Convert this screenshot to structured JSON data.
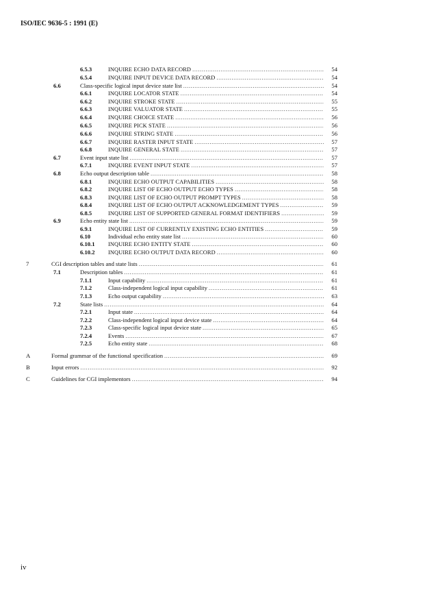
{
  "header": {
    "title": "ISO/IEC 9636-5 : 1991 (E)"
  },
  "toc": {
    "entries": [
      {
        "number": "6.5.3",
        "title": "INQUIRE ECHO DATA RECORD",
        "page": "54"
      },
      {
        "number": "6.5.4",
        "title": "INQUIRE INPUT DEVICE DATA RECORD",
        "page": "54"
      },
      {
        "number": "6.6",
        "title": "Class-specific logical input device state list",
        "page": "54"
      },
      {
        "number": "6.6.1",
        "title": "INQUIRE LOCATOR STATE",
        "page": "54"
      },
      {
        "number": "6.6.2",
        "title": "INQUIRE STROKE STATE",
        "page": "55"
      },
      {
        "number": "6.6.3",
        "title": "INQUIRE VALUATOR STATE",
        "page": "55"
      },
      {
        "number": "6.6.4",
        "title": "INQUIRE CHOICE STATE",
        "page": "56"
      },
      {
        "number": "6.6.5",
        "title": "INQUIRE PICK STATE",
        "page": "56"
      },
      {
        "number": "6.6.6",
        "title": "INQUIRE STRING STATE",
        "page": "56"
      },
      {
        "number": "6.6.7",
        "title": "INQUIRE RASTER INPUT STATE",
        "page": "57"
      },
      {
        "number": "6.6.8",
        "title": "INQUIRE GENERAL STATE",
        "page": "57"
      },
      {
        "number": "6.7",
        "title": "Event input state list",
        "page": "57"
      },
      {
        "number": "6.7.1",
        "title": "INQUIRE EVENT INPUT STATE",
        "page": "57"
      },
      {
        "number": "6.8",
        "title": "Echo output description table",
        "page": "58"
      },
      {
        "number": "6.8.1",
        "title": "INQUIRE ECHO OUTPUT CAPABILITIES",
        "page": "58"
      },
      {
        "number": "6.8.2",
        "title": "INQUIRE LIST OF ECHO OUTPUT ECHO TYPES",
        "page": "58"
      },
      {
        "number": "6.8.3",
        "title": "INQUIRE LIST OF ECHO OUTPUT PROMPT TYPES",
        "page": "58"
      },
      {
        "number": "6.8.4",
        "title": "INQUIRE LIST OF ECHO OUTPUT ACKNOWLEDGEMENT TYPES",
        "page": "59"
      },
      {
        "number": "6.8.5",
        "title": "INQUIRE LIST OF SUPPORTED GENERAL FORMAT IDENTIFIERS",
        "page": "59"
      },
      {
        "number": "6.9",
        "title": "Echo entity state list",
        "page": "59"
      },
      {
        "number": "6.9.1",
        "title": "INQUIRE LIST OF CURRENTLY EXISTING ECHO ENTITIES",
        "page": "59"
      },
      {
        "number": "6.10",
        "title": "Individual echo entity state list",
        "page": "60"
      },
      {
        "number": "6.10.1",
        "title": "INQUIRE ECHO ENTITY STATE",
        "page": "60"
      },
      {
        "number": "6.10.2",
        "title": "INQUIRE ECHO OUTPUT DATA RECORD",
        "page": "60"
      },
      {
        "number": "7",
        "title": "CGI description tables and state lists",
        "page": "61"
      },
      {
        "number": "7.1",
        "title": "Description tables",
        "page": "61"
      },
      {
        "number": "7.1.1",
        "title": "Input capability",
        "page": "61"
      },
      {
        "number": "7.1.2",
        "title": "Class-independent logical input capability",
        "page": "61"
      },
      {
        "number": "7.1.3",
        "title": "Echo output capability",
        "page": "63"
      },
      {
        "number": "7.2",
        "title": "State lists",
        "page": "64"
      },
      {
        "number": "7.2.1",
        "title": "Input state",
        "page": "64"
      },
      {
        "number": "7.2.2",
        "title": "Class-independent logical input device state",
        "page": "64"
      },
      {
        "number": "7.2.3",
        "title": "Class-specific logical input device state",
        "page": "65"
      },
      {
        "number": "7.2.4",
        "title": "Events",
        "page": "67"
      },
      {
        "number": "7.2.5",
        "title": "Echo entity state",
        "page": "68"
      },
      {
        "number": "A",
        "title": "Formal grammar of the functional specification",
        "page": "69"
      },
      {
        "number": "B",
        "title": "Input errors",
        "page": "92"
      },
      {
        "number": "C",
        "title": "Guidelines for CGI implementors",
        "page": "94"
      }
    ]
  },
  "footer": {
    "page": "iv"
  }
}
